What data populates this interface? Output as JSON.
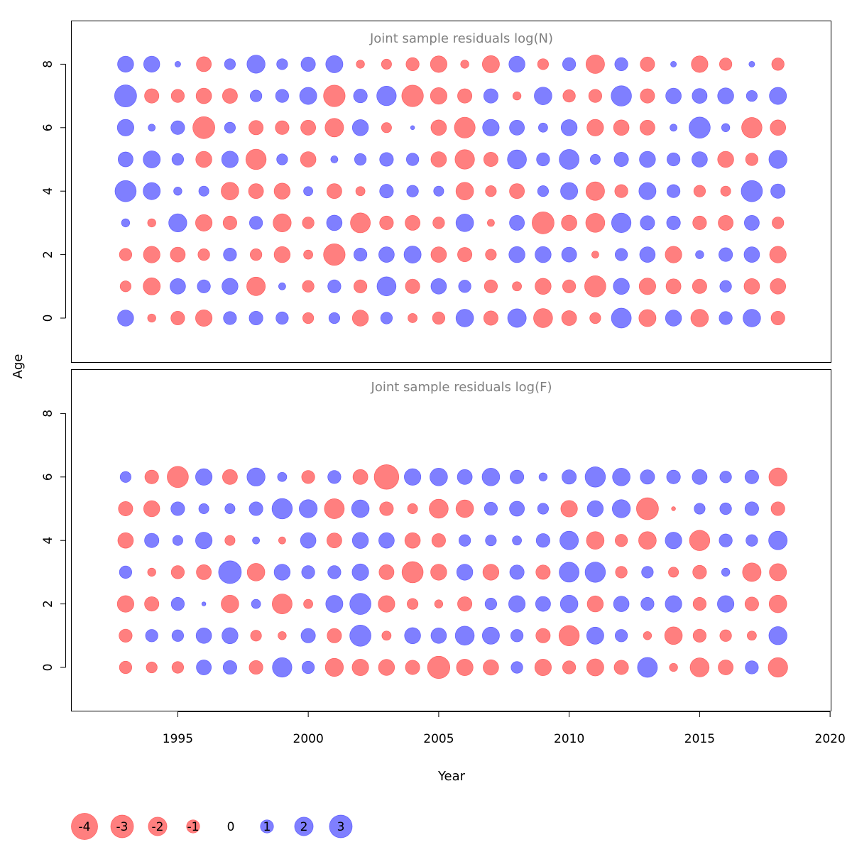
{
  "colors": {
    "negative": "#FF5F5F",
    "positive": "#5F5FFF",
    "title": "#808080",
    "text": "#000000"
  },
  "chart_data": {
    "type": "bubble",
    "xlabel": "Year",
    "ylabel": "Age",
    "xlim": [
      1991.4,
      2020.2
    ],
    "ylim": [
      -1.2,
      9.3
    ],
    "x_ticks": [
      1995,
      2000,
      2005,
      2010,
      2015,
      2020
    ],
    "y_ticks": [
      0,
      2,
      4,
      6,
      8
    ],
    "years": [
      1993,
      1994,
      1995,
      1996,
      1997,
      1998,
      1999,
      2000,
      2001,
      2002,
      2003,
      2004,
      2005,
      2006,
      2007,
      2008,
      2009,
      2010,
      2011,
      2012,
      2013,
      2014,
      2015,
      2016,
      2017,
      2018
    ],
    "legend": [
      {
        "label": "-4",
        "value": -4
      },
      {
        "label": "-3",
        "value": -3
      },
      {
        "label": "-2",
        "value": -2
      },
      {
        "label": "-1",
        "value": -1
      },
      {
        "label": "0",
        "value": 0
      },
      {
        "label": "1",
        "value": 1
      },
      {
        "label": "2",
        "value": 2
      },
      {
        "label": "3",
        "value": 3
      }
    ],
    "panels": [
      {
        "title": "Joint sample residuals log(N)",
        "ages": [
          0,
          1,
          2,
          3,
          4,
          5,
          6,
          7,
          8
        ],
        "residuals": [
          [
            1.5,
            -0.4,
            -1.1,
            -1.6,
            1.0,
            1.1,
            0.9,
            -0.7,
            0.7,
            -1.5,
            0.8,
            -0.5,
            -0.9,
            1.8,
            -1.2,
            2.0,
            -2.1,
            -1.3,
            -0.7,
            2.3,
            -1.7,
            1.5,
            -1.8,
            1.0,
            1.8,
            -1.1
          ],
          [
            -0.7,
            -1.7,
            1.4,
            1.0,
            1.5,
            -2.0,
            0.3,
            -0.8,
            1.0,
            -1.0,
            2.1,
            -1.2,
            1.4,
            0.9,
            -1.0,
            -0.5,
            -1.5,
            -1.0,
            -2.6,
            1.5,
            -1.6,
            -1.3,
            -1.2,
            0.8,
            -1.4,
            -1.4
          ],
          [
            -0.9,
            -1.6,
            -1.3,
            -0.8,
            1.0,
            -0.8,
            -1.5,
            -0.5,
            -2.7,
            1.0,
            1.4,
            1.7,
            -1.4,
            -1.2,
            -0.7,
            1.5,
            1.5,
            1.3,
            -0.3,
            0.9,
            1.4,
            -1.6,
            0.4,
            1.1,
            1.4,
            -1.6
          ],
          [
            0.4,
            -0.4,
            1.9,
            -1.6,
            -1.1,
            1.0,
            -1.9,
            -0.8,
            1.4,
            -2.3,
            -1.1,
            -1.3,
            -0.8,
            1.8,
            -0.3,
            1.3,
            -2.8,
            -1.4,
            -2.1,
            2.2,
            1.2,
            1.1,
            -1.1,
            -1.3,
            1.3,
            -0.8
          ],
          [
            2.6,
            1.7,
            0.4,
            0.6,
            -1.8,
            -1.3,
            -1.5,
            0.5,
            -1.3,
            -0.5,
            1.1,
            0.8,
            0.6,
            -1.8,
            -0.7,
            -1.3,
            0.7,
            1.7,
            -2.0,
            -1.0,
            1.7,
            1.0,
            -0.8,
            -0.6,
            2.6,
            1.2
          ],
          [
            1.3,
            1.7,
            0.8,
            -1.5,
            1.6,
            -2.4,
            0.7,
            -1.4,
            0.3,
            0.8,
            1.1,
            0.9,
            -1.4,
            -2.2,
            -1.2,
            2.1,
            1.0,
            2.3,
            0.6,
            1.2,
            1.5,
            1.0,
            1.4,
            -1.5,
            -0.9,
            1.9
          ],
          [
            1.6,
            0.3,
            1.1,
            -2.8,
            0.7,
            -1.2,
            -1.1,
            -1.3,
            -2.0,
            1.5,
            -0.6,
            0.1,
            -1.4,
            -2.5,
            1.6,
            1.3,
            0.5,
            1.5,
            -1.6,
            -1.4,
            -1.3,
            0.3,
            2.6,
            0.4,
            -2.4,
            -1.4
          ],
          [
            2.8,
            -1.2,
            -1.0,
            -1.4,
            -1.3,
            0.8,
            1.0,
            1.7,
            -2.7,
            1.1,
            2.2,
            -2.7,
            -1.6,
            -1.2,
            1.2,
            -0.4,
            1.8,
            -0.9,
            -1.0,
            2.4,
            -1.2,
            1.4,
            1.3,
            1.5,
            0.7,
            1.7
          ],
          [
            1.5,
            1.5,
            0.2,
            -1.3,
            0.7,
            1.9,
            0.7,
            1.2,
            1.7,
            -0.4,
            -0.6,
            -1.0,
            -1.6,
            -0.4,
            -1.7,
            1.5,
            -0.7,
            1.0,
            -2.0,
            1.0,
            -1.2,
            0.2,
            -1.6,
            -0.9,
            0.2,
            -0.9
          ]
        ]
      },
      {
        "title": "Joint sample residuals log(F)",
        "ages": [
          0,
          1,
          2,
          3,
          4,
          5,
          6
        ],
        "residuals": [
          [
            -0.9,
            -0.7,
            -0.8,
            1.3,
            1.1,
            -1.1,
            2.2,
            0.9,
            -1.9,
            -1.6,
            -1.5,
            -1.2,
            -2.9,
            -1.6,
            -1.4,
            0.8,
            -1.6,
            -1.0,
            -1.7,
            -1.2,
            2.3,
            -0.4,
            -2.1,
            -1.3,
            1.0,
            -2.2
          ],
          [
            -1.0,
            0.9,
            0.8,
            1.4,
            1.5,
            -0.7,
            -0.4,
            1.2,
            -1.2,
            2.6,
            -0.5,
            1.5,
            1.4,
            2.1,
            1.7,
            0.9,
            -1.2,
            -2.4,
            1.7,
            0.9,
            -0.4,
            -1.8,
            -1.0,
            -0.8,
            -0.5,
            1.9
          ],
          [
            -1.6,
            -1.2,
            1.0,
            0.1,
            -1.8,
            0.5,
            -2.3,
            -0.5,
            1.7,
            2.6,
            -1.6,
            -0.7,
            -0.4,
            -1.2,
            0.8,
            1.6,
            1.3,
            1.8,
            -1.5,
            1.4,
            1.0,
            1.6,
            -1.0,
            1.6,
            -1.1,
            -1.8
          ],
          [
            0.9,
            -0.4,
            -1.0,
            -1.3,
            3.0,
            -1.8,
            1.5,
            1.0,
            1.0,
            1.6,
            -1.3,
            -2.6,
            -1.5,
            1.5,
            -1.5,
            1.2,
            -1.2,
            2.3,
            2.4,
            -0.8,
            0.8,
            -0.6,
            -1.1,
            0.4,
            -2.0,
            -1.7
          ],
          [
            -1.4,
            1.2,
            0.6,
            1.6,
            -0.6,
            0.3,
            -0.3,
            1.4,
            -1.3,
            1.5,
            1.4,
            -1.4,
            -1.1,
            0.8,
            0.7,
            0.5,
            1.1,
            2.0,
            -1.8,
            -0.9,
            -1.8,
            1.6,
            -2.4,
            1.0,
            0.8,
            2.0
          ],
          [
            -1.2,
            -1.5,
            1.1,
            0.6,
            0.6,
            1.1,
            2.4,
            1.9,
            -2.3,
            1.8,
            -1.1,
            -0.6,
            -2.1,
            -1.8,
            1.0,
            1.3,
            0.7,
            -1.6,
            1.5,
            1.9,
            -2.8,
            -0.1,
            0.7,
            0.8,
            1.1,
            -1.1
          ],
          [
            0.7,
            -1.1,
            -2.6,
            1.6,
            -1.3,
            1.9,
            0.5,
            -1.0,
            1.0,
            -1.3,
            -3.5,
            1.6,
            1.8,
            1.3,
            1.8,
            1.1,
            0.4,
            1.2,
            2.4,
            1.8,
            1.2,
            1.1,
            1.3,
            0.8,
            1.1,
            -1.9
          ]
        ]
      }
    ]
  }
}
